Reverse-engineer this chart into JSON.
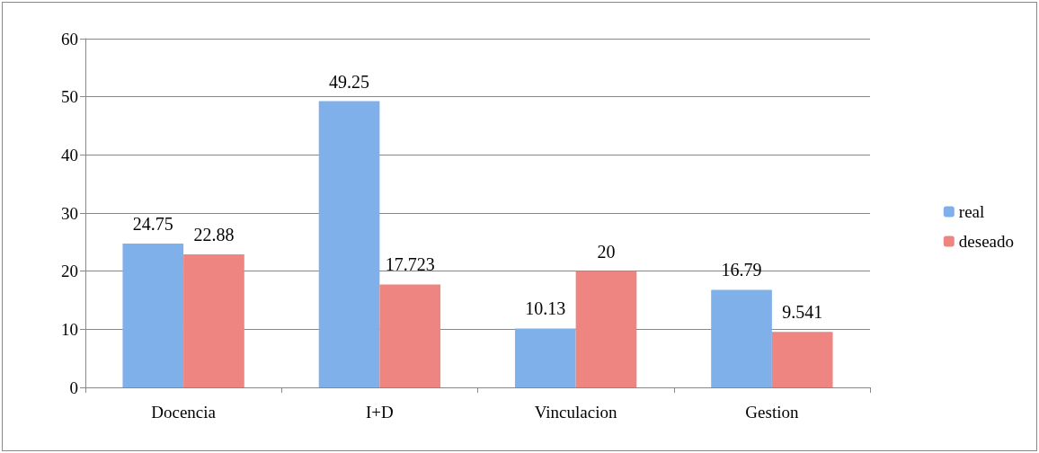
{
  "chart_data": {
    "type": "bar",
    "categories": [
      "Docencia",
      "I+D",
      "Vinculacion",
      "Gestion"
    ],
    "series": [
      {
        "name": "real",
        "color": "#7fb0ea",
        "values": [
          24.75,
          49.25,
          10.13,
          16.79
        ]
      },
      {
        "name": "deseado",
        "color": "#ef8580",
        "values": [
          22.88,
          17.723,
          20,
          9.541
        ]
      }
    ],
    "ylim": [
      0,
      60
    ],
    "yticks": [
      0,
      10,
      20,
      30,
      40,
      50,
      60
    ],
    "grid": "y",
    "legend": "right",
    "data_labels": true
  }
}
